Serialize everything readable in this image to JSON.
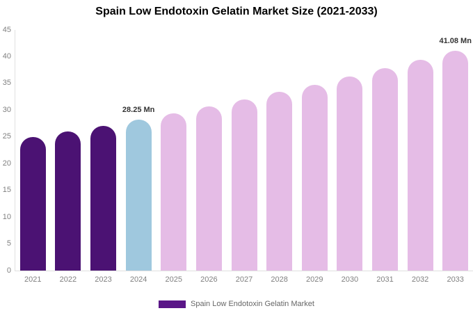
{
  "title": "Spain Low Endotoxin Gelatin Market Size (2021-2033)",
  "legend": {
    "label": "Spain Low Endotoxin Gelatin Market",
    "swatch_color": "#5a1687"
  },
  "colors": {
    "historical": "#4b1273",
    "current": "#9fc8de",
    "forecast": "#e5bce6"
  },
  "chart_data": {
    "type": "bar",
    "title": "Spain Low Endotoxin Gelatin Market Size (2021-2033)",
    "xlabel": "",
    "ylabel": "",
    "ylim": [
      0,
      45
    ],
    "yticks": [
      0,
      5,
      10,
      15,
      20,
      25,
      30,
      35,
      40,
      45
    ],
    "grid": false,
    "legend_position": "bottom",
    "categories": [
      "2021",
      "2022",
      "2023",
      "2024",
      "2025",
      "2026",
      "2027",
      "2028",
      "2029",
      "2030",
      "2031",
      "2032",
      "2033"
    ],
    "series": [
      {
        "name": "Spain Low Endotoxin Gelatin Market",
        "unit": "Mn",
        "values": [
          24.94,
          26.0,
          27.1,
          28.25,
          29.45,
          30.7,
          32.01,
          33.37,
          34.79,
          36.27,
          37.81,
          39.42,
          41.08
        ]
      }
    ],
    "segments": [
      "historical",
      "historical",
      "historical",
      "current",
      "forecast",
      "forecast",
      "forecast",
      "forecast",
      "forecast",
      "forecast",
      "forecast",
      "forecast",
      "forecast"
    ],
    "annotations": [
      {
        "category": "2024",
        "text": "28.25 Mn"
      },
      {
        "category": "2033",
        "text": "41.08 Mn"
      }
    ]
  }
}
